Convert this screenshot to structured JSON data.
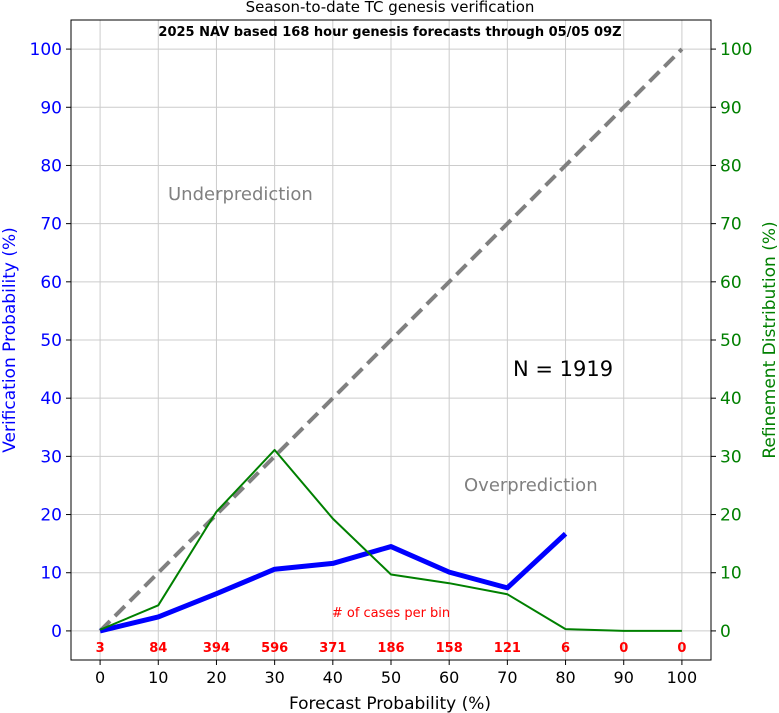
{
  "chart_data": {
    "type": "line",
    "title": "Season-to-date TC genesis verification",
    "subtitle": "2025 NAV based 168 hour genesis forecasts through 05/05 09Z",
    "xlabel": "Forecast Probability (%)",
    "ylabel_left": "Verification Probability (%)",
    "ylabel_right": "Refinement Distribution (%)",
    "xlim": [
      -5,
      105
    ],
    "ylim": [
      -5,
      105
    ],
    "x_ticks": [
      0,
      10,
      20,
      30,
      40,
      50,
      60,
      70,
      80,
      90,
      100
    ],
    "y_ticks": [
      0,
      10,
      20,
      30,
      40,
      50,
      60,
      70,
      80,
      90,
      100
    ],
    "grid": true,
    "series": [
      {
        "x": [
          0,
          100
        ],
        "values": [
          0,
          100
        ],
        "color": "#808080",
        "style": "dashed",
        "axis": "left"
      },
      {
        "x": [
          0,
          10,
          20,
          30,
          40,
          50,
          60,
          70,
          80
        ],
        "values": [
          0,
          2.4,
          6.4,
          10.6,
          11.6,
          14.5,
          10.1,
          7.4,
          16.7
        ],
        "color": "#0000ff",
        "style": "solid",
        "axis": "left"
      },
      {
        "x": [
          0,
          10,
          20,
          30,
          40,
          50,
          60,
          70,
          80,
          90,
          100
        ],
        "values": [
          0.2,
          4.4,
          20.5,
          31.1,
          19.3,
          9.7,
          8.2,
          6.3,
          0.3,
          0,
          0
        ],
        "color": "#008000",
        "style": "solid",
        "axis": "right"
      }
    ],
    "annotations": {
      "underprediction": "Underprediction",
      "overprediction": "Overprediction",
      "n_label": "N = 1919",
      "cases_label": "# of cases per bin"
    },
    "cases_per_bin": [
      {
        "x": 0,
        "label": "3"
      },
      {
        "x": 10,
        "label": "84"
      },
      {
        "x": 20,
        "label": "394"
      },
      {
        "x": 30,
        "label": "596"
      },
      {
        "x": 40,
        "label": "371"
      },
      {
        "x": 50,
        "label": "186"
      },
      {
        "x": 60,
        "label": "158"
      },
      {
        "x": 70,
        "label": "121"
      },
      {
        "x": 80,
        "label": "6"
      },
      {
        "x": 90,
        "label": "0"
      },
      {
        "x": 100,
        "label": "0"
      }
    ],
    "colors": {
      "left_axis": "#0000ff",
      "right_axis": "#008000",
      "annotation": "#808080",
      "cases": "#ff0000",
      "grid": "#cccccc"
    }
  }
}
